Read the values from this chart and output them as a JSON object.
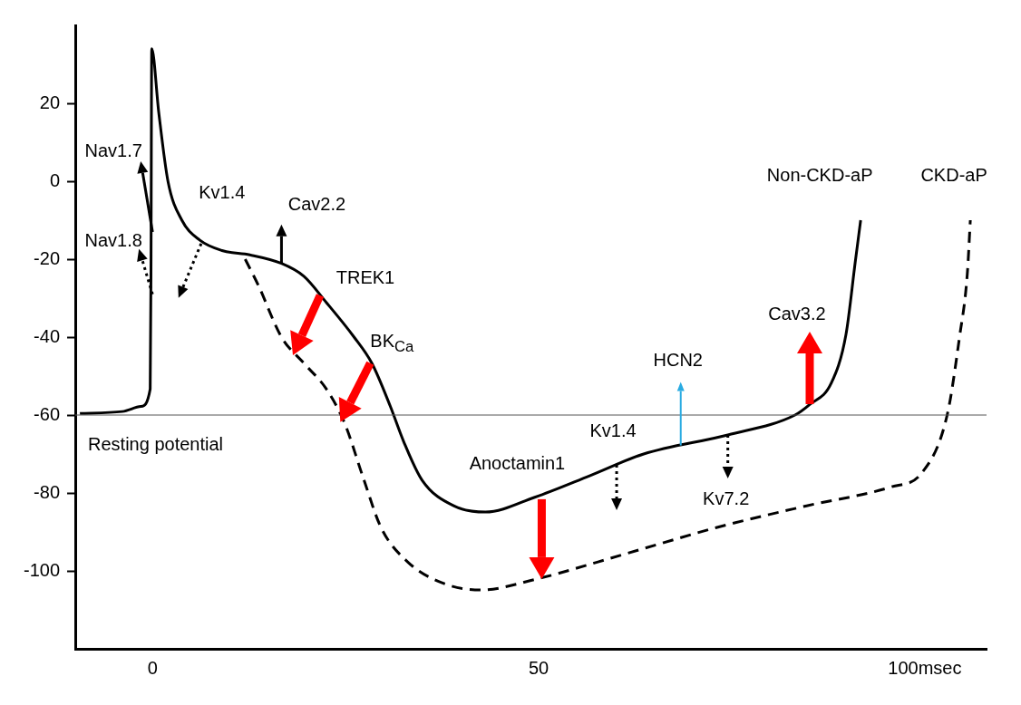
{
  "chart_data": {
    "type": "line",
    "xlim": [
      -10,
      108
    ],
    "ylim": [
      -120,
      40
    ],
    "xticks": [
      0,
      50,
      {
        "value": 100,
        "label": "100msec"
      }
    ],
    "yticks": [
      20,
      0,
      -20,
      -40,
      -60,
      -80,
      -100
    ],
    "grid": false,
    "legend": false,
    "marker": "none",
    "series": [
      {
        "name": "Non-CKD-aP",
        "color": "#000000",
        "line_style": "solid",
        "x": [
          -9.4,
          -3.9,
          -1.5,
          -0.3,
          -0.2,
          -0.1,
          0.8,
          2.0,
          3.8,
          6.1,
          9.0,
          12.6,
          16.7,
          19.6,
          22.5,
          26.1,
          28.4,
          30.8,
          32.5,
          34.9,
          39.0,
          43.1,
          49.5,
          56.6,
          63.6,
          74.5,
          83.2,
          85.1,
          87.9,
          89.8,
          91.0,
          91.7
        ],
        "values": [
          -59.6,
          -59.1,
          -57.8,
          -53.3,
          -24.4,
          34,
          17.8,
          0,
          -10,
          -15.1,
          -17.8,
          -18.9,
          -21.1,
          -24.4,
          -31.1,
          -40,
          -46.7,
          -57.8,
          -66.7,
          -76.7,
          -83.3,
          -84.9,
          -81.1,
          -75.6,
          -70,
          -65.1,
          -60,
          -57.3,
          -51.8,
          -39.3,
          -20.7,
          -10
        ]
      },
      {
        "name": "CKD-aP",
        "color": "#000000",
        "line_style": "dashed",
        "x": [
          12.0,
          13.7,
          16.7,
          19.6,
          22.5,
          24.9,
          27.2,
          29.6,
          33.1,
          37.8,
          42.5,
          49.5,
          61.3,
          73.0,
          84.7,
          95.7,
          99.6,
          102.9,
          104.5,
          105.5,
          105.9
        ],
        "values": [
          -20,
          -26.7,
          -40,
          -46.7,
          -53.3,
          -62.2,
          -75.6,
          -88.9,
          -97.8,
          -103.3,
          -104.9,
          -102.2,
          -95.6,
          -88.9,
          -83.3,
          -78.4,
          -74.9,
          -60,
          -40,
          -24,
          -10
        ]
      }
    ],
    "ref_lines": [
      {
        "axis": "y",
        "value": -60,
        "label": "Resting potential",
        "color": "#555555"
      }
    ],
    "annotations": [
      {
        "text": "Nav1.7",
        "x": 0,
        "y": -13
      },
      {
        "text": "Nav1.8",
        "x": 0,
        "y": -29
      },
      {
        "text": "Kv1.4",
        "x": 6.3,
        "y": -16
      },
      {
        "text": "Cav2.2",
        "x": 16.7,
        "y": -21.1
      },
      {
        "text": "TREK1",
        "x": 21.7,
        "y": -29.3
      },
      {
        "text": "BK$_{Ca}$",
        "x": 28.2,
        "y": -46.7
      },
      {
        "text": "Anoctamin1",
        "x": 50.4,
        "y": -81.6
      },
      {
        "text": "Kv1.4",
        "x": 60.1,
        "y": -72.8
      },
      {
        "text": "HCN2",
        "x": 68.4,
        "y": -67.8
      },
      {
        "text": "Kv7.2",
        "x": 74.5,
        "y": -65.1
      },
      {
        "text": "Cav3.2",
        "x": 89.8,
        "y": -39.3
      }
    ]
  }
}
